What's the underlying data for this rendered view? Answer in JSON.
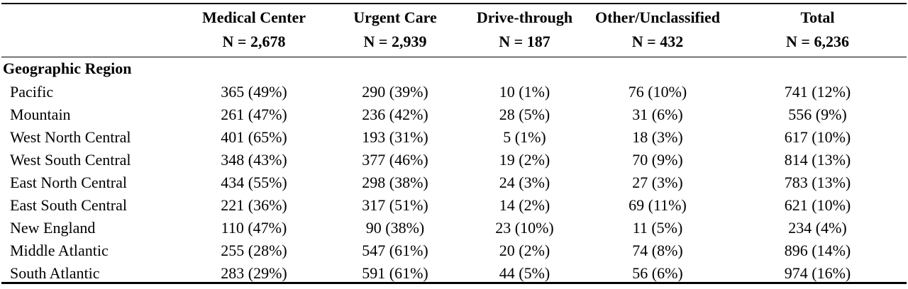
{
  "columns": [
    {
      "title": "Medical Center",
      "n": "N = 2,678"
    },
    {
      "title": "Urgent Care",
      "n": "N = 2,939"
    },
    {
      "title": "Drive-through",
      "n": "N = 187"
    },
    {
      "title": "Other/Unclassified",
      "n": "N = 432"
    },
    {
      "title": "Total",
      "n": "N = 6,236"
    }
  ],
  "section": {
    "title": "Geographic Region"
  },
  "rows": [
    {
      "label": "Pacific",
      "values": [
        "365 (49%)",
        "290 (39%)",
        "10 (1%)",
        "76 (10%)",
        "741 (12%)"
      ]
    },
    {
      "label": "Mountain",
      "values": [
        "261 (47%)",
        "236 (42%)",
        "28 (5%)",
        "31 (6%)",
        "556 (9%)"
      ]
    },
    {
      "label": "West North Central",
      "values": [
        "401 (65%)",
        "193 (31%)",
        "5 (1%)",
        "18 (3%)",
        "617 (10%)"
      ]
    },
    {
      "label": "West South Central",
      "values": [
        "348 (43%)",
        "377 (46%)",
        "19 (2%)",
        "70 (9%)",
        "814 (13%)"
      ]
    },
    {
      "label": "East North Central",
      "values": [
        "434 (55%)",
        "298 (38%)",
        "24 (3%)",
        "27 (3%)",
        "783 (13%)"
      ]
    },
    {
      "label": "East South Central",
      "values": [
        "221 (36%)",
        "317 (51%)",
        "14 (2%)",
        "69 (11%)",
        "621 (10%)"
      ]
    },
    {
      "label": "New England",
      "values": [
        "110 (47%)",
        "90 (38%)",
        "23 (10%)",
        "11 (5%)",
        "234 (4%)"
      ]
    },
    {
      "label": "Middle Atlantic",
      "values": [
        "255 (28%)",
        "547 (61%)",
        "20 (2%)",
        "74 (8%)",
        "896 (14%)"
      ]
    },
    {
      "label": "South Atlantic",
      "values": [
        "283 (29%)",
        "591 (61%)",
        "44 (5%)",
        "56 (6%)",
        "974 (16%)"
      ]
    }
  ]
}
